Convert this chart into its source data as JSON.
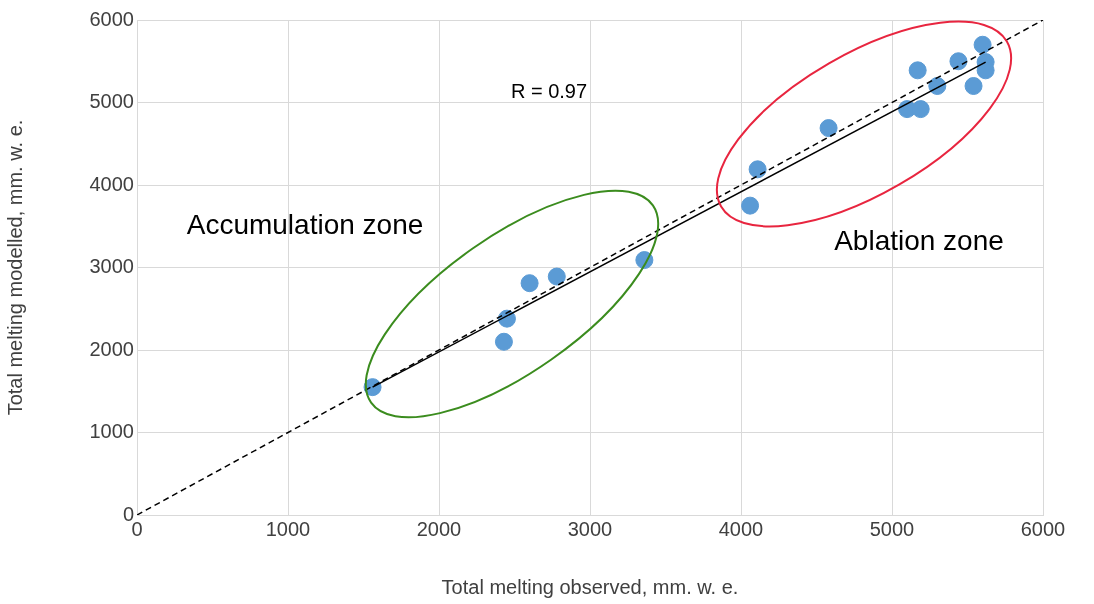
{
  "chart_data": {
    "type": "scatter",
    "xlabel": "Total melting observed, mm. w. e.",
    "ylabel": "Total melting modelled, mm. w. e.",
    "xlim": [
      0,
      6000
    ],
    "xticks": [
      0,
      1000,
      2000,
      3000,
      4000,
      5000,
      6000
    ],
    "ylim": [
      0,
      6000
    ],
    "yticks": [
      0,
      1000,
      2000,
      3000,
      4000,
      5000,
      6000
    ],
    "grid": true,
    "marker": "circle",
    "annotations": [
      "R = 0.97",
      "Accumulation zone",
      "Ablation zone"
    ],
    "series": [
      {
        "type": "scatter",
        "color": "#5b9bd5",
        "x": [
          1560,
          2430,
          2450,
          2600,
          2780,
          3360,
          4060,
          4110,
          4580,
          5100,
          5190,
          5170,
          5300,
          5440,
          5540,
          5600,
          5620,
          5620
        ],
        "values": [
          1550,
          2100,
          2380,
          2810,
          2890,
          3090,
          3750,
          4190,
          4690,
          4920,
          4920,
          5390,
          5200,
          5500,
          5200,
          5700,
          5490,
          5390
        ]
      },
      {
        "type": "line",
        "color": "#000000",
        "line_style": "solid",
        "marker": "none",
        "x": [
          1560,
          5620
        ],
        "values": [
          1550,
          5490
        ]
      },
      {
        "type": "line",
        "color": "#000000",
        "line_style": "dashed",
        "marker": "none",
        "x": [
          0,
          6000
        ],
        "values": [
          0,
          6000
        ]
      }
    ]
  }
}
